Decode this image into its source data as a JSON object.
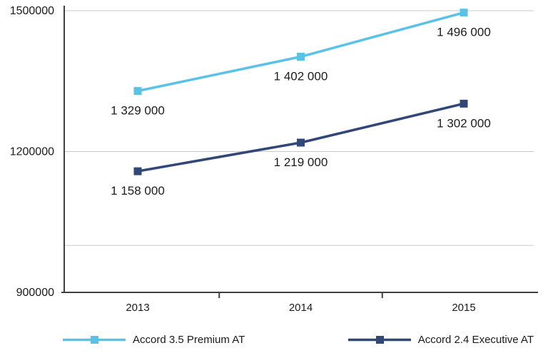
{
  "chart_data": {
    "type": "line",
    "x": [
      "2013",
      "2014",
      "2015"
    ],
    "series": [
      {
        "name": "Accord 3.5 Premium AT",
        "color": "#5BC2E7",
        "values": [
          1329000,
          1402000,
          1496000
        ],
        "point_labels": [
          "1 329 000",
          "1 402 000",
          "1 496 000"
        ]
      },
      {
        "name": "Accord 2.4 Executive AT",
        "color": "#304778",
        "values": [
          1158000,
          1219000,
          1302000
        ],
        "point_labels": [
          "1 158 000",
          "1 219 000",
          "1 302 000"
        ]
      }
    ],
    "title": "",
    "xlabel": "",
    "ylabel": "",
    "ylim": [
      900000,
      1500000
    ],
    "yticks": [
      900000,
      1200000,
      1500000
    ],
    "ytick_labels": [
      "900000",
      "1200000",
      "1500000"
    ],
    "gridline_values": [
      1000000,
      1200000,
      1500000
    ],
    "grid": "horizontal",
    "legend_position": "bottom",
    "axis_color": "#404040",
    "grid_color": "#c9c9c9",
    "text_color": "#1a1a1a",
    "marker_shape": "square"
  }
}
